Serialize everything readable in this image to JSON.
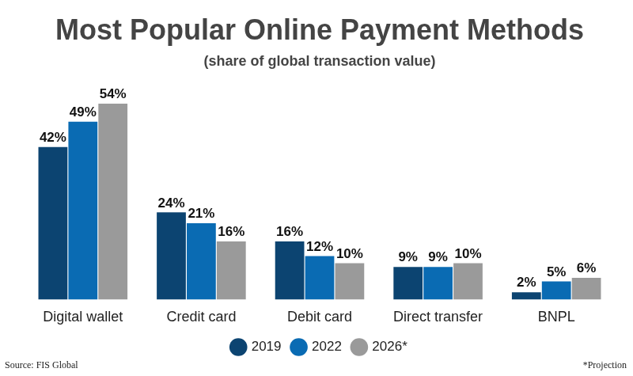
{
  "chart_data": {
    "type": "bar",
    "title": "Most Popular Online Payment Methods",
    "subtitle": "(share of global transaction value)",
    "source": "Source: FIS Global",
    "note": "*Projection",
    "categories": [
      "Digital wallet",
      "Credit card",
      "Debit card",
      "Direct transfer",
      "BNPL"
    ],
    "series": [
      {
        "name": "2019",
        "color": "#0c4471",
        "values": [
          42,
          24,
          16,
          9,
          2
        ],
        "value_labels": [
          "42%",
          "24%",
          "16%",
          "9%",
          "2%"
        ]
      },
      {
        "name": "2022",
        "color": "#0a6bb3",
        "values": [
          49,
          21,
          12,
          9,
          5
        ],
        "value_labels": [
          "49%",
          "21%",
          "12%",
          "9%",
          "5%"
        ]
      },
      {
        "name": "2026*",
        "color": "#9a9a9a",
        "values": [
          54,
          16,
          10,
          10,
          6
        ],
        "value_labels": [
          "54%",
          "16%",
          "10%",
          "10%",
          "6%"
        ]
      }
    ],
    "ylim": [
      0,
      54
    ],
    "grid": false,
    "legend": "bottom",
    "data_labels": true,
    "tick_labels": "x"
  }
}
